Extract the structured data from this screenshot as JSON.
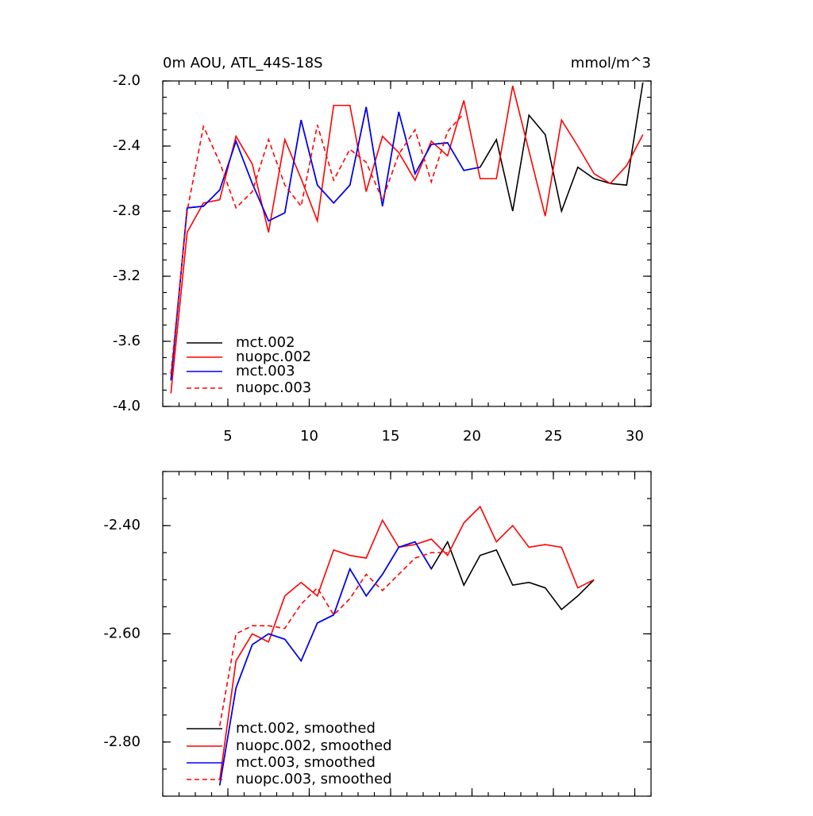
{
  "chart_data": [
    {
      "type": "line",
      "title": "0m AOU, ATL_44S-18S",
      "units": "mmol/m^3",
      "x": [
        1.5,
        2.5,
        3.5,
        4.5,
        5.5,
        6.5,
        7.5,
        8.5,
        9.5,
        10.5,
        11.5,
        12.5,
        13.5,
        14.5,
        15.5,
        16.5,
        17.5,
        18.5,
        19.5,
        20.5,
        21.5,
        22.5,
        23.5,
        24.5,
        25.5,
        26.5,
        27.5,
        28.5,
        29.5,
        30.5
      ],
      "series": [
        {
          "name": "mct.002",
          "color": "#000000",
          "dash": false,
          "values": [
            -3.84,
            -2.78,
            -2.77,
            -2.67,
            -2.37,
            -2.63,
            -2.86,
            -2.81,
            -2.24,
            -2.64,
            -2.75,
            -2.64,
            -2.16,
            -2.77,
            -2.19,
            -2.57,
            -2.39,
            -2.38,
            -2.55,
            -2.53,
            -2.36,
            -2.8,
            -2.21,
            -2.33,
            -2.8,
            -2.53,
            -2.6,
            -2.63,
            -2.64,
            -2.01
          ]
        },
        {
          "name": "nuopc.002",
          "color": "#ff0000",
          "dash": false,
          "values": [
            -3.92,
            -2.93,
            -2.75,
            -2.73,
            -2.34,
            -2.51,
            -2.93,
            -2.36,
            -2.6,
            -2.86,
            -2.15,
            -2.15,
            -2.68,
            -2.34,
            -2.44,
            -2.61,
            -2.37,
            -2.46,
            -2.12,
            -2.6,
            -2.6,
            -2.03,
            -2.43,
            -2.83,
            -2.24,
            -2.4,
            -2.57,
            -2.63,
            -2.52,
            -2.33
          ]
        },
        {
          "name": "mct.003",
          "color": "#0000ff",
          "dash": false,
          "values": [
            -3.84,
            -2.78,
            -2.77,
            -2.67,
            -2.37,
            -2.63,
            -2.86,
            -2.81,
            -2.24,
            -2.64,
            -2.75,
            -2.64,
            -2.16,
            -2.77,
            -2.19,
            -2.57,
            -2.39,
            -2.38,
            -2.55,
            -2.53,
            null,
            null,
            null,
            null,
            null,
            null,
            null,
            null,
            null,
            null
          ]
        },
        {
          "name": "nuopc.003",
          "color": "#ff0000",
          "dash": true,
          "values": [
            -3.8,
            -2.8,
            -2.28,
            -2.5,
            -2.78,
            -2.68,
            -2.36,
            -2.64,
            -2.77,
            -2.27,
            -2.61,
            -2.42,
            -2.5,
            -2.73,
            -2.45,
            -2.3,
            -2.62,
            -2.31,
            -2.2,
            null,
            null,
            null,
            null,
            null,
            null,
            null,
            null,
            null,
            null,
            null
          ]
        }
      ],
      "xlim": [
        1,
        31
      ],
      "ylim": [
        -4,
        -2
      ],
      "xticks": [
        5,
        10,
        15,
        20,
        25,
        30
      ],
      "show_xtick_labels": true,
      "yticks": [
        {
          "value": -4,
          "label": "-4.0"
        },
        -3.6,
        -3.2,
        -2.8,
        -2.4,
        {
          "value": -2,
          "label": "-2.0"
        }
      ]
    },
    {
      "type": "line",
      "x": [
        1.5,
        2.5,
        3.5,
        4.5,
        5.5,
        6.5,
        7.5,
        8.5,
        9.5,
        10.5,
        11.5,
        12.5,
        13.5,
        14.5,
        15.5,
        16.5,
        17.5,
        18.5,
        19.5,
        20.5,
        21.5,
        22.5,
        23.5,
        24.5,
        25.5,
        26.5,
        27.5,
        28.5,
        29.5,
        30.5
      ],
      "series": [
        {
          "name": "mct.002, smoothed",
          "color": "#000000",
          "dash": false,
          "values": [
            null,
            null,
            null,
            -2.88,
            -2.7,
            -2.62,
            -2.6,
            -2.61,
            -2.65,
            -2.58,
            -2.565,
            -2.48,
            -2.53,
            -2.49,
            -2.44,
            -2.43,
            -2.48,
            -2.43,
            -2.51,
            -2.455,
            -2.445,
            -2.51,
            -2.505,
            -2.515,
            -2.555,
            -2.53,
            -2.5,
            null,
            null,
            null
          ]
        },
        {
          "name": "nuopc.002, smoothed",
          "color": "#ff0000",
          "dash": false,
          "values": [
            null,
            null,
            null,
            -2.87,
            -2.65,
            -2.6,
            -2.615,
            -2.53,
            -2.505,
            -2.53,
            -2.445,
            -2.455,
            -2.46,
            -2.39,
            -2.44,
            -2.435,
            -2.425,
            -2.455,
            -2.395,
            -2.365,
            -2.43,
            -2.4,
            -2.44,
            -2.435,
            -2.44,
            -2.515,
            -2.5,
            null,
            null,
            null
          ]
        },
        {
          "name": "mct.003, smoothed",
          "color": "#0000ff",
          "dash": false,
          "values": [
            null,
            null,
            null,
            -2.88,
            -2.7,
            -2.62,
            -2.6,
            -2.61,
            -2.65,
            -2.58,
            -2.565,
            -2.48,
            -2.53,
            -2.49,
            -2.44,
            -2.43,
            -2.48,
            null,
            null,
            null,
            null,
            null,
            null,
            null,
            null,
            null,
            null,
            null,
            null,
            null
          ]
        },
        {
          "name": "nuopc.003, smoothed",
          "color": "#ff0000",
          "dash": true,
          "values": [
            null,
            null,
            null,
            -2.77,
            -2.6,
            -2.585,
            -2.585,
            -2.59,
            -2.545,
            -2.515,
            -2.565,
            -2.535,
            -2.49,
            -2.52,
            -2.49,
            -2.46,
            -2.45,
            -2.45,
            null,
            null,
            null,
            null,
            null,
            null,
            null,
            null,
            null,
            null,
            null,
            null
          ]
        }
      ],
      "xlim": [
        1,
        31
      ],
      "ylim": [
        -2.9,
        -2.3
      ],
      "xticks": [
        5,
        10,
        15,
        20,
        25,
        30
      ],
      "show_xtick_labels": false,
      "yticks": [
        {
          "value": -2.8,
          "label": "-2.80"
        },
        {
          "value": -2.6,
          "label": "-2.60"
        },
        {
          "value": -2.4,
          "label": "-2.40"
        }
      ]
    }
  ]
}
